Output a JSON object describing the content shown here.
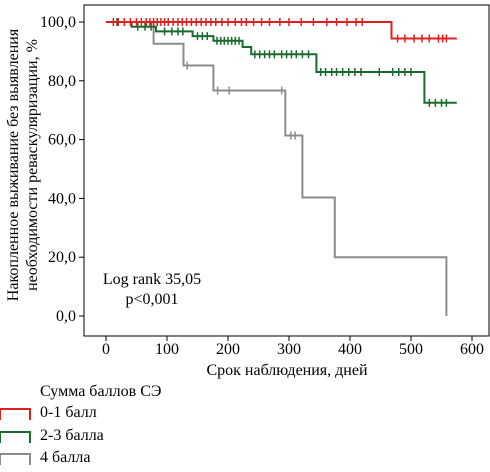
{
  "chart_data": {
    "type": "line",
    "subtype": "kaplan-meier survival curve",
    "xlabel": "Срок наблюдения, дней",
    "ylabel_line1": "Накопленное выживание без выявления",
    "ylabel_line2": "необходимости реваскуляризации, %",
    "xlim": [
      0,
      600
    ],
    "ylim": [
      0,
      100
    ],
    "x_ticks": [
      0,
      100,
      200,
      300,
      400,
      500,
      600
    ],
    "y_ticks": [
      {
        "value": 0,
        "label": "0,0"
      },
      {
        "value": 20,
        "label": "20,0"
      },
      {
        "value": 40,
        "label": "40,0"
      },
      {
        "value": 60,
        "label": "60,0"
      },
      {
        "value": 80,
        "label": "80,0"
      },
      {
        "value": 100,
        "label": "100,0"
      }
    ],
    "annotation_line1": "Log rank 35,05",
    "annotation_line2": "p<0,001",
    "grid": false,
    "legend_title": "Сумма баллов СЭ",
    "legend_position": "bottom-left",
    "series": [
      {
        "name": "0-1 балл",
        "color": "#e02020",
        "steps": [
          [
            0,
            100
          ],
          [
            468,
            100
          ],
          [
            468,
            94.4
          ],
          [
            575,
            94.4
          ]
        ],
        "censored": [
          [
            12,
            100
          ],
          [
            20,
            100
          ],
          [
            30,
            100
          ],
          [
            40,
            100
          ],
          [
            50,
            100
          ],
          [
            58,
            100
          ],
          [
            66,
            100
          ],
          [
            72,
            100
          ],
          [
            78,
            100
          ],
          [
            84,
            100
          ],
          [
            90,
            100
          ],
          [
            96,
            100
          ],
          [
            102,
            100
          ],
          [
            110,
            100
          ],
          [
            118,
            100
          ],
          [
            125,
            100
          ],
          [
            132,
            100
          ],
          [
            140,
            100
          ],
          [
            148,
            100
          ],
          [
            156,
            100
          ],
          [
            164,
            100
          ],
          [
            172,
            100
          ],
          [
            180,
            100
          ],
          [
            190,
            100
          ],
          [
            200,
            100
          ],
          [
            212,
            100
          ],
          [
            222,
            100
          ],
          [
            230,
            100
          ],
          [
            242,
            100
          ],
          [
            255,
            100
          ],
          [
            268,
            100
          ],
          [
            285,
            100
          ],
          [
            300,
            100
          ],
          [
            320,
            100
          ],
          [
            340,
            100
          ],
          [
            362,
            100
          ],
          [
            378,
            100
          ],
          [
            395,
            100
          ],
          [
            410,
            100
          ],
          [
            420,
            100
          ],
          [
            478,
            94.4
          ],
          [
            490,
            94.4
          ],
          [
            505,
            94.4
          ],
          [
            518,
            94.4
          ],
          [
            530,
            94.4
          ],
          [
            545,
            94.4
          ],
          [
            552,
            94.4
          ],
          [
            558,
            94.4
          ]
        ]
      },
      {
        "name": "2-3 балла",
        "color": "#1a6b2e",
        "steps": [
          [
            0,
            100
          ],
          [
            42,
            100
          ],
          [
            42,
            98.4
          ],
          [
            82,
            98.4
          ],
          [
            82,
            96.8
          ],
          [
            142,
            96.8
          ],
          [
            142,
            95.2
          ],
          [
            176,
            95.2
          ],
          [
            176,
            93.6
          ],
          [
            224,
            93.6
          ],
          [
            224,
            91.5
          ],
          [
            238,
            91.5
          ],
          [
            238,
            89.0
          ],
          [
            345,
            89.0
          ],
          [
            345,
            83.0
          ],
          [
            522,
            83.0
          ],
          [
            522,
            72.5
          ],
          [
            575,
            72.5
          ]
        ],
        "censored": [
          [
            18,
            100
          ],
          [
            30,
            100
          ],
          [
            52,
            98.4
          ],
          [
            64,
            98.4
          ],
          [
            74,
            98.4
          ],
          [
            96,
            96.8
          ],
          [
            108,
            96.8
          ],
          [
            118,
            96.8
          ],
          [
            126,
            96.8
          ],
          [
            150,
            95.2
          ],
          [
            158,
            95.2
          ],
          [
            166,
            95.2
          ],
          [
            182,
            93.6
          ],
          [
            188,
            93.6
          ],
          [
            194,
            93.6
          ],
          [
            200,
            93.6
          ],
          [
            206,
            93.6
          ],
          [
            212,
            93.6
          ],
          [
            218,
            93.6
          ],
          [
            244,
            89.0
          ],
          [
            252,
            89.0
          ],
          [
            260,
            89.0
          ],
          [
            268,
            89.0
          ],
          [
            276,
            89.0
          ],
          [
            288,
            89.0
          ],
          [
            296,
            89.0
          ],
          [
            304,
            89.0
          ],
          [
            312,
            89.0
          ],
          [
            322,
            89.0
          ],
          [
            332,
            89.0
          ],
          [
            352,
            83.0
          ],
          [
            360,
            83.0
          ],
          [
            370,
            83.0
          ],
          [
            378,
            83.0
          ],
          [
            388,
            83.0
          ],
          [
            398,
            83.0
          ],
          [
            408,
            83.0
          ],
          [
            418,
            83.0
          ],
          [
            448,
            83.0
          ],
          [
            470,
            83.0
          ],
          [
            480,
            83.0
          ],
          [
            490,
            83.0
          ],
          [
            500,
            83.0
          ],
          [
            530,
            72.5
          ],
          [
            540,
            72.5
          ],
          [
            550,
            72.5
          ],
          [
            558,
            72.5
          ]
        ]
      },
      {
        "name": "4 балла",
        "color": "#8c8c8c",
        "steps": [
          [
            0,
            100
          ],
          [
            78,
            100
          ],
          [
            78,
            92.6
          ],
          [
            127,
            92.6
          ],
          [
            127,
            85.2
          ],
          [
            176,
            85.2
          ],
          [
            176,
            76.7
          ],
          [
            294,
            76.7
          ],
          [
            294,
            61.4
          ],
          [
            322,
            61.4
          ],
          [
            322,
            40.3
          ],
          [
            375,
            40.3
          ],
          [
            375,
            20.0
          ],
          [
            558,
            20.0
          ],
          [
            558,
            0
          ]
        ],
        "censored": [
          [
            12,
            100
          ],
          [
            133,
            85.2
          ],
          [
            183,
            76.7
          ],
          [
            202,
            76.7
          ],
          [
            288,
            76.7
          ],
          [
            303,
            61.4
          ],
          [
            310,
            61.4
          ]
        ]
      }
    ]
  }
}
